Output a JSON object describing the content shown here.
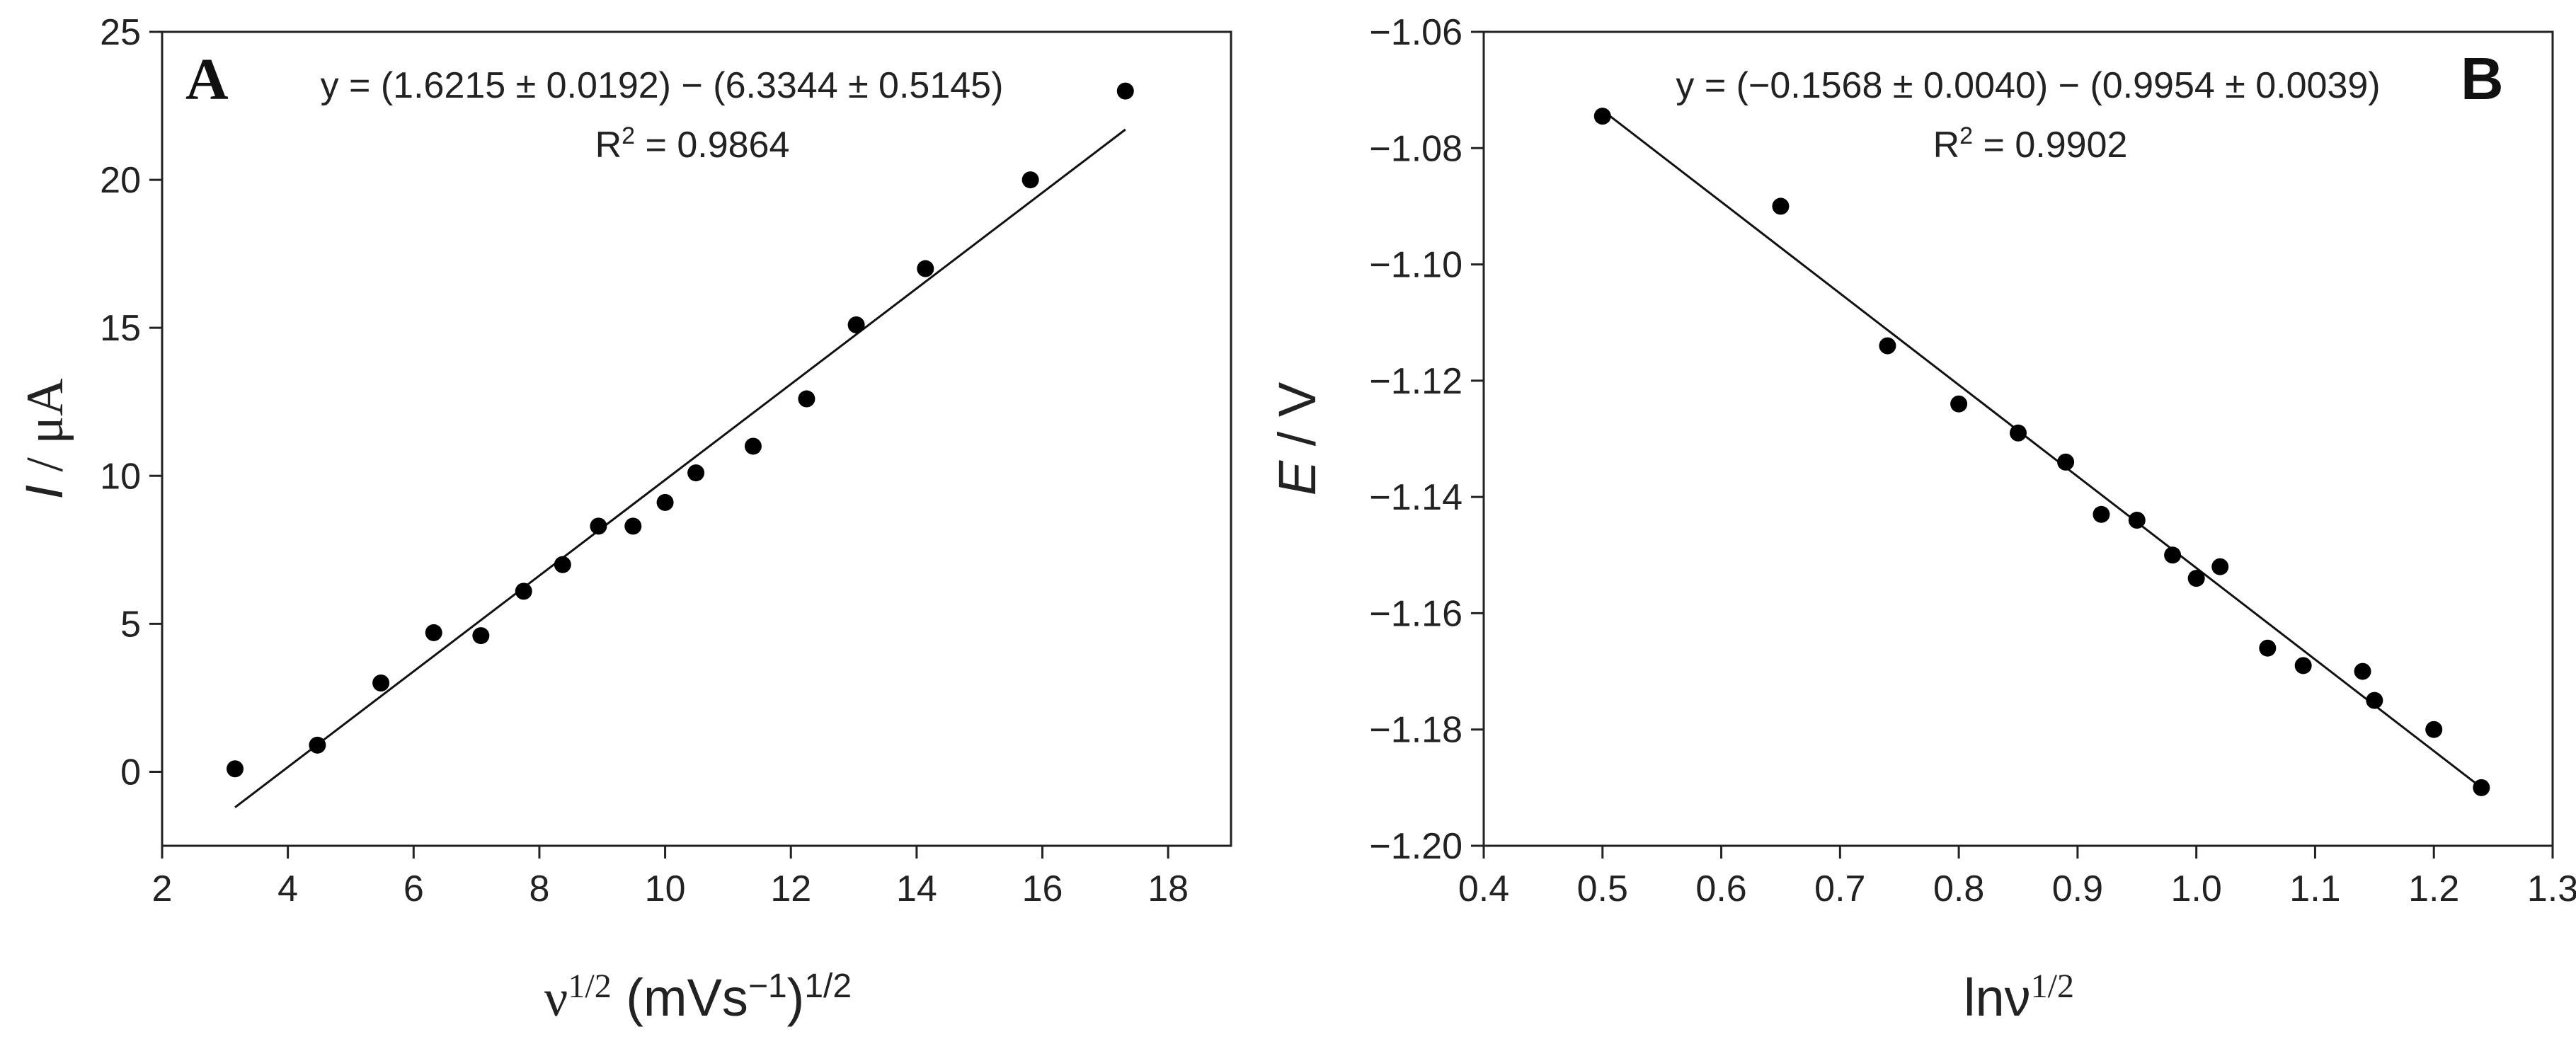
{
  "chart_data": [
    {
      "type": "scatter",
      "panel_label": "A",
      "xlabel": "ν",
      "xlabel_sup": "1/2",
      "xlabel_tail": " (mVs",
      "xlabel_tail_sup": "−1",
      "xlabel_tail_end": ")",
      "xlabel_tail_end_sup": "1/2",
      "ylabel_italic": "I",
      "ylabel_rest": " / μA",
      "xlim": [
        2,
        19
      ],
      "ylim": [
        -2.5,
        25
      ],
      "xticks": [
        2,
        4,
        6,
        8,
        10,
        12,
        14,
        16,
        18
      ],
      "yticks": [
        0,
        5,
        10,
        15,
        20,
        25
      ],
      "grid": false,
      "points": {
        "x": [
          3.16,
          4.47,
          5.48,
          6.32,
          7.07,
          7.75,
          8.37,
          8.94,
          9.49,
          10.0,
          10.49,
          11.4,
          12.25,
          13.04,
          14.14,
          15.81,
          17.32
        ],
        "y": [
          0.1,
          0.9,
          3.0,
          4.7,
          4.6,
          6.1,
          7.0,
          8.3,
          8.3,
          9.1,
          10.1,
          11.0,
          12.6,
          15.1,
          17.0,
          20.0,
          23.0
        ]
      },
      "fit_line": {
        "x": [
          3.16,
          17.32
        ],
        "y": [
          -1.2,
          21.7
        ]
      },
      "equation": "y = (1.6215 ± 0.0192) − (6.3344 ± 0.5145)",
      "r2_prefix": "R",
      "r2_sup": "2",
      "r2_value": " = 0.9864"
    },
    {
      "type": "scatter",
      "panel_label": "B",
      "xlabel": "lnν",
      "xlabel_sup": "1/2",
      "ylabel_italic": "E",
      "ylabel_rest": " / V",
      "xlim": [
        0.4,
        1.3
      ],
      "ylim": [
        -1.2,
        -1.06
      ],
      "xticks": [
        0.4,
        0.5,
        0.6,
        0.7,
        0.8,
        0.9,
        1.0,
        1.1,
        1.2,
        1.3
      ],
      "xtick_labels": [
        "0.4",
        "0.5",
        "0.6",
        "0.7",
        "0.8",
        "0.9",
        "1.0",
        "1.1",
        "1.2",
        "1.3"
      ],
      "yticks": [
        -1.2,
        -1.18,
        -1.16,
        -1.14,
        -1.12,
        -1.1,
        -1.08,
        -1.06
      ],
      "ytick_labels": [
        "−1.20",
        "−1.18",
        "−1.16",
        "−1.14",
        "−1.12",
        "−1.10",
        "−1.08",
        "−1.06"
      ],
      "grid": false,
      "points": {
        "x": [
          0.5,
          0.65,
          0.74,
          0.8,
          0.85,
          0.89,
          0.92,
          0.95,
          0.98,
          1.0,
          1.02,
          1.06,
          1.09,
          1.14,
          1.15,
          1.2,
          1.24
        ],
        "y": [
          -1.0745,
          -1.09,
          -1.114,
          -1.124,
          -1.129,
          -1.134,
          -1.143,
          -1.144,
          -1.15,
          -1.154,
          -1.152,
          -1.166,
          -1.169,
          -1.17,
          -1.175,
          -1.18,
          -1.19
        ]
      },
      "fit_line": {
        "x": [
          0.5,
          1.24
        ],
        "y": [
          -1.0735,
          -1.19
        ]
      },
      "equation": "y = (−0.1568 ± 0.0040) − (0.9954 ± 0.0039)",
      "r2_prefix": "R",
      "r2_sup": "2",
      "r2_value": " = 0.9902"
    }
  ]
}
